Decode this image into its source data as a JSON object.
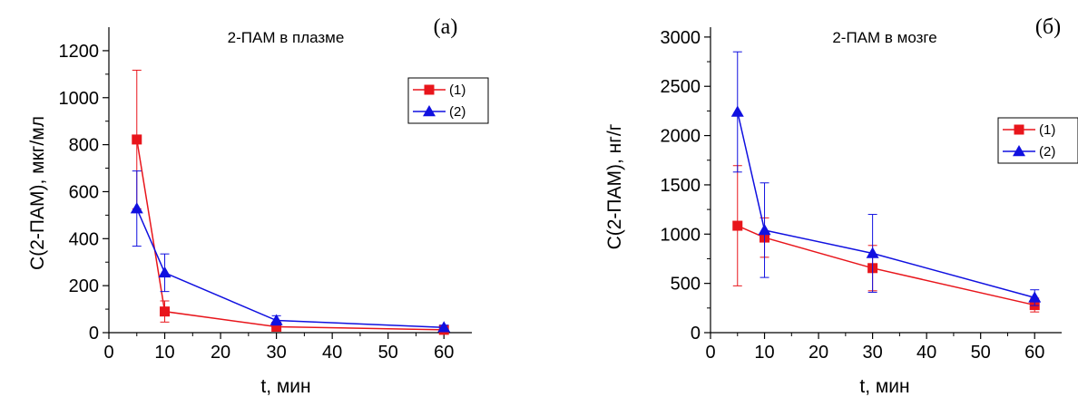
{
  "chart_data": [
    {
      "type": "line",
      "panel_label": "(а)",
      "title": "2-ПАМ в плазме",
      "xlabel": "t, мин",
      "ylabel": "C(2-ПАМ), мкг/мл",
      "xlim": [
        0,
        65
      ],
      "ylim": [
        0,
        1300
      ],
      "xticks": [
        0,
        10,
        20,
        30,
        40,
        50,
        60
      ],
      "yticks": [
        0,
        200,
        400,
        600,
        800,
        1000,
        1200
      ],
      "grid": false,
      "legend_position": "right",
      "series": [
        {
          "name": "(1)",
          "color": "#e8151b",
          "marker": "square",
          "x": [
            5,
            10,
            30,
            60
          ],
          "y": [
            822,
            90,
            25,
            12
          ],
          "err": [
            295,
            45,
            10,
            5
          ]
        },
        {
          "name": "(2)",
          "color": "#1010e0",
          "marker": "triangle",
          "x": [
            5,
            10,
            30,
            60
          ],
          "y": [
            528,
            255,
            52,
            22
          ],
          "err": [
            160,
            80,
            20,
            10
          ]
        }
      ]
    },
    {
      "type": "line",
      "panel_label": "(б)",
      "title": "2-ПАМ в мозге",
      "xlabel": "t, мин",
      "ylabel": "C(2-ПАМ), нг/г",
      "xlim": [
        0,
        65
      ],
      "ylim": [
        0,
        3100
      ],
      "xticks": [
        0,
        10,
        20,
        30,
        40,
        50,
        60
      ],
      "yticks": [
        0,
        500,
        1000,
        1500,
        2000,
        2500,
        3000
      ],
      "grid": false,
      "legend_position": "right",
      "series": [
        {
          "name": "(1)",
          "color": "#e8151b",
          "marker": "square",
          "x": [
            5,
            10,
            30,
            60
          ],
          "y": [
            1085,
            965,
            655,
            280
          ],
          "err": [
            610,
            200,
            230,
            70
          ]
        },
        {
          "name": "(2)",
          "color": "#1010e0",
          "marker": "triangle",
          "x": [
            5,
            10,
            30,
            60
          ],
          "y": [
            2240,
            1040,
            805,
            355
          ],
          "err": [
            610,
            480,
            395,
            80
          ]
        }
      ]
    }
  ]
}
